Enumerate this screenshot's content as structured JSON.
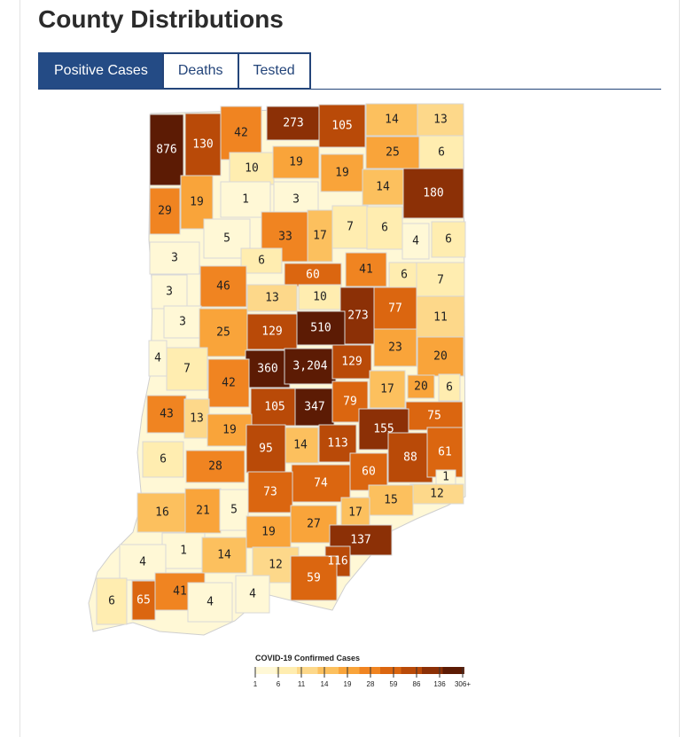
{
  "page": {
    "title": "County Distributions"
  },
  "tabs": [
    {
      "label": "Positive Cases",
      "active": true
    },
    {
      "label": "Deaths",
      "active": false
    },
    {
      "label": "Tested",
      "active": false
    }
  ],
  "legend": {
    "title": "COVID-19 Confirmed Cases",
    "ticks": [
      "1",
      "6",
      "11",
      "14",
      "19",
      "28",
      "59",
      "86",
      "136",
      "306+"
    ],
    "colors": [
      "#fff8d6",
      "#ffedb0",
      "#fdd88a",
      "#fcc05e",
      "#f9a43a",
      "#f08421",
      "#db6610",
      "#b94a08",
      "#8c3006",
      "#5c1b04"
    ]
  },
  "chart_data": {
    "type": "table",
    "title": "",
    "counties": [
      {
        "value": "876"
      },
      {
        "value": "130"
      },
      {
        "value": "42"
      },
      {
        "value": "273"
      },
      {
        "value": "105"
      },
      {
        "value": "14"
      },
      {
        "value": "13"
      },
      {
        "value": "25"
      },
      {
        "value": "6"
      },
      {
        "value": "10"
      },
      {
        "value": "19"
      },
      {
        "value": "19"
      },
      {
        "value": "29"
      },
      {
        "value": "19"
      },
      {
        "value": "1"
      },
      {
        "value": "3"
      },
      {
        "value": "14"
      },
      {
        "value": "180"
      },
      {
        "value": "7"
      },
      {
        "value": "6"
      },
      {
        "value": "5"
      },
      {
        "value": "33"
      },
      {
        "value": "17"
      },
      {
        "value": "4"
      },
      {
        "value": "6"
      },
      {
        "value": "3"
      },
      {
        "value": "6"
      },
      {
        "value": "60"
      },
      {
        "value": "41"
      },
      {
        "value": "6"
      },
      {
        "value": "7"
      },
      {
        "value": "3"
      },
      {
        "value": "46"
      },
      {
        "value": "13"
      },
      {
        "value": "10"
      },
      {
        "value": "273"
      },
      {
        "value": "77"
      },
      {
        "value": "3"
      },
      {
        "value": "11"
      },
      {
        "value": "25"
      },
      {
        "value": "129"
      },
      {
        "value": "510"
      },
      {
        "value": "23"
      },
      {
        "value": "4"
      },
      {
        "value": "7"
      },
      {
        "value": "20"
      },
      {
        "value": "360"
      },
      {
        "value": "3,204"
      },
      {
        "value": "129"
      },
      {
        "value": "42"
      },
      {
        "value": "17"
      },
      {
        "value": "20"
      },
      {
        "value": "6"
      },
      {
        "value": "105"
      },
      {
        "value": "347"
      },
      {
        "value": "79"
      },
      {
        "value": "43"
      },
      {
        "value": "13"
      },
      {
        "value": "75"
      },
      {
        "value": "19"
      },
      {
        "value": "155"
      },
      {
        "value": "14"
      },
      {
        "value": "113"
      },
      {
        "value": "95"
      },
      {
        "value": "6"
      },
      {
        "value": "88"
      },
      {
        "value": "61"
      },
      {
        "value": "28"
      },
      {
        "value": "60"
      },
      {
        "value": "1"
      },
      {
        "value": "74"
      },
      {
        "value": "73"
      },
      {
        "value": "12"
      },
      {
        "value": "16"
      },
      {
        "value": "21"
      },
      {
        "value": "5"
      },
      {
        "value": "15"
      },
      {
        "value": "17"
      },
      {
        "value": "27"
      },
      {
        "value": "19"
      },
      {
        "value": "137"
      },
      {
        "value": "1"
      },
      {
        "value": "4"
      },
      {
        "value": "14"
      },
      {
        "value": "116"
      },
      {
        "value": "12"
      },
      {
        "value": "59"
      },
      {
        "value": "41"
      },
      {
        "value": "65"
      },
      {
        "value": "6"
      },
      {
        "value": "4"
      },
      {
        "value": "4"
      }
    ]
  }
}
